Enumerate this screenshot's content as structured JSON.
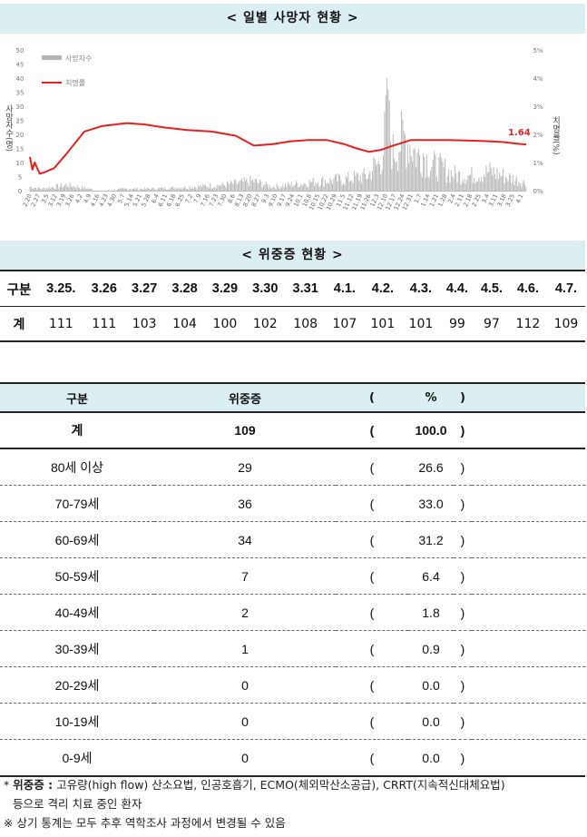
{
  "section1": {
    "title": "< 일별 사망자 현황 >"
  },
  "chart_data": {
    "type": "bar",
    "title": "",
    "ylabel_left": "사망자수(명)",
    "ylabel_right": "치명률(%)",
    "y_left": {
      "min": 0,
      "max": 50,
      "ticks": [
        "0",
        "5",
        "10",
        "15",
        "20",
        "25",
        "30",
        "35",
        "40",
        "45",
        "50"
      ]
    },
    "y_right": {
      "min": 0,
      "max": 5,
      "ticks": [
        "0%",
        "1%",
        "2%",
        "3%",
        "4%",
        "5%"
      ]
    },
    "x_tick_labels": [
      "2.20",
      "2.27",
      "3.5",
      "3.12",
      "3.19",
      "3.26",
      "4.2",
      "4.9",
      "4.16",
      "4.23",
      "4.30",
      "5.7",
      "5.14",
      "5.21",
      "5.28",
      "6.4",
      "6.11",
      "6.18",
      "6.25",
      "7.2",
      "7.9",
      "7.16",
      "7.23",
      "7.30",
      "8.6",
      "8.13",
      "8.20",
      "8.27",
      "9.3",
      "9.10",
      "9.17",
      "9.24",
      "10.1",
      "10.8",
      "10.15",
      "10.22",
      "10.29",
      "11.5",
      "11.12",
      "11.19",
      "11.26",
      "12.3",
      "12.10",
      "12.17",
      "12.24",
      "12.31",
      "1.7",
      "1.14",
      "1.21",
      "1.28",
      "2.4",
      "2.11",
      "2.18",
      "2.25",
      "3.4",
      "3.11",
      "3.18",
      "3.25",
      "4.1"
    ],
    "legend": [
      {
        "name": "사망자수",
        "color": "#b5b5b5",
        "kind": "bar"
      },
      {
        "name": "치명률",
        "color": "#e8211e",
        "kind": "line"
      }
    ],
    "deaths_envelope": {
      "x": [
        0,
        10,
        30,
        58,
        80,
        100,
        135,
        160,
        185,
        200,
        240,
        260,
        280,
        283,
        288,
        292,
        295,
        300,
        305,
        310,
        315,
        320,
        325,
        330,
        340,
        352,
        365,
        380,
        395,
        405,
        410
      ],
      "y": [
        2,
        1,
        3,
        0,
        1,
        1,
        2,
        3,
        5,
        2,
        5,
        6,
        8,
        12,
        14,
        22,
        40,
        20,
        25,
        28,
        24,
        18,
        20,
        14,
        12,
        8,
        8,
        10,
        7,
        5,
        4
      ]
    },
    "fatality_rate": {
      "x": [
        0,
        2,
        4,
        8,
        12,
        20,
        30,
        45,
        60,
        80,
        95,
        110,
        130,
        150,
        170,
        185,
        200,
        215,
        230,
        245,
        260,
        270,
        280,
        290,
        300,
        315,
        330,
        345,
        360,
        375,
        390,
        400,
        410
      ],
      "y": [
        1.2,
        0.75,
        1.0,
        0.6,
        0.65,
        0.8,
        1.3,
        2.1,
        2.3,
        2.4,
        2.35,
        2.25,
        2.15,
        2.1,
        1.95,
        1.6,
        1.65,
        1.75,
        1.8,
        1.8,
        1.65,
        1.5,
        1.38,
        1.45,
        1.6,
        1.8,
        1.8,
        1.8,
        1.78,
        1.76,
        1.73,
        1.68,
        1.64
      ]
    },
    "annotation": {
      "text": "1.64",
      "color": "#e8211e"
    },
    "grid": false,
    "legend_position": "top-left"
  },
  "section2": {
    "title": "< 위중증 현황 >"
  },
  "daily_table": {
    "header_label": "구분",
    "dates": [
      "3.25.",
      "3.26",
      "3.27",
      "3.28",
      "3.29",
      "3.30",
      "3.31",
      "4.1.",
      "4.2.",
      "4.3.",
      "4.4.",
      "4.5.",
      "4.6.",
      "4.7."
    ],
    "row_label": "계",
    "values": [
      "111",
      "111",
      "103",
      "104",
      "100",
      "102",
      "108",
      "107",
      "101",
      "101",
      "99",
      "97",
      "112",
      "109"
    ]
  },
  "age_table": {
    "headers": [
      "구분",
      "위중증",
      "(",
      "%",
      ")"
    ],
    "total": [
      "계",
      "109",
      "(",
      "100.0",
      ")"
    ],
    "rows": [
      [
        "80세 이상",
        "29",
        "(",
        "26.6",
        ")"
      ],
      [
        "70-79세",
        "36",
        "(",
        "33.0",
        ")"
      ],
      [
        "60-69세",
        "34",
        "(",
        "31.2",
        ")"
      ],
      [
        "50-59세",
        "7",
        "(",
        "6.4",
        ")"
      ],
      [
        "40-49세",
        "2",
        "(",
        "1.8",
        ")"
      ],
      [
        "30-39세",
        "1",
        "(",
        "0.9",
        ")"
      ],
      [
        "20-29세",
        "0",
        "(",
        "0.0",
        ")"
      ],
      [
        "10-19세",
        "0",
        "(",
        "0.0",
        ")"
      ],
      [
        "0-9세",
        "0",
        "(",
        "0.0",
        ")"
      ]
    ]
  },
  "notes": {
    "note1_prefix": "* ",
    "note1_bold": "위중증 :",
    "note1_text": " 고유량(high flow) 산소요법, 인공호흡기, ECMO(체외막산소공급), CRRT(지속적신대체요법)",
    "note1_cont": "등으로 격리 치료 중인 환자",
    "note2": "※ 상기 통계는 모두 추후 역학조사 과정에서 변경될 수 있음"
  }
}
